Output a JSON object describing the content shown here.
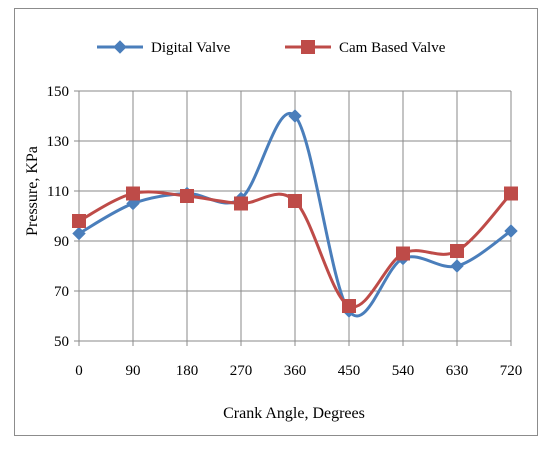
{
  "chart_data": {
    "type": "line",
    "title": "",
    "xlabel": "Crank Angle, Degrees",
    "ylabel": "Pressure, KPa",
    "categories": [
      "0",
      "90",
      "180",
      "270",
      "360",
      "450",
      "540",
      "630",
      "720"
    ],
    "x": [
      0,
      90,
      180,
      270,
      360,
      450,
      540,
      630,
      720
    ],
    "ylim": [
      50,
      150
    ],
    "yticks": [
      "50",
      "70",
      "90",
      "110",
      "130",
      "150"
    ],
    "grid": true,
    "legend_position": "top",
    "smooth": true,
    "series": [
      {
        "name": "Digital Valve",
        "marker": "diamond",
        "color": "#4a7ebb",
        "values": [
          93,
          105,
          109,
          107,
          140,
          62,
          83,
          80,
          94
        ]
      },
      {
        "name": "Cam Based Valve",
        "marker": "square",
        "color": "#be4b48",
        "values": [
          98,
          109,
          108,
          105,
          106,
          64,
          85,
          86,
          109
        ]
      }
    ]
  }
}
